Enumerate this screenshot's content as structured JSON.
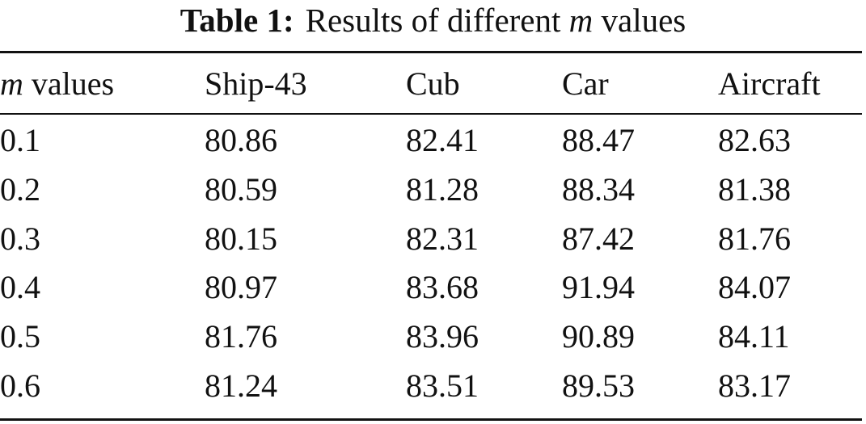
{
  "caption": {
    "label": "Table 1:",
    "text_before": "Results of different",
    "variable": "m",
    "text_after": "values"
  },
  "table": {
    "header": {
      "first_col_variable": "m",
      "first_col_suffix": "values",
      "columns": [
        "Ship-43",
        "Cub",
        "Car",
        "Aircraft"
      ]
    },
    "rows": [
      {
        "m": "0.1",
        "values": [
          "80.86",
          "82.41",
          "88.47",
          "82.63"
        ],
        "bold": [
          false,
          false,
          false,
          false
        ]
      },
      {
        "m": "0.2",
        "values": [
          "80.59",
          "81.28",
          "88.34",
          "81.38"
        ],
        "bold": [
          false,
          false,
          false,
          false
        ]
      },
      {
        "m": "0.3",
        "values": [
          "80.15",
          "82.31",
          "87.42",
          "81.76"
        ],
        "bold": [
          false,
          false,
          false,
          false
        ]
      },
      {
        "m": "0.4",
        "values": [
          "80.97",
          "83.68",
          "91.94",
          "84.07"
        ],
        "bold": [
          false,
          false,
          true,
          false
        ]
      },
      {
        "m": "0.5",
        "values": [
          "81.76",
          "83.96",
          "90.89",
          "84.11"
        ],
        "bold": [
          true,
          true,
          false,
          true
        ]
      },
      {
        "m": "0.6",
        "values": [
          "81.24",
          "83.51",
          "89.53",
          "83.17"
        ],
        "bold": [
          false,
          false,
          false,
          false
        ]
      }
    ]
  }
}
